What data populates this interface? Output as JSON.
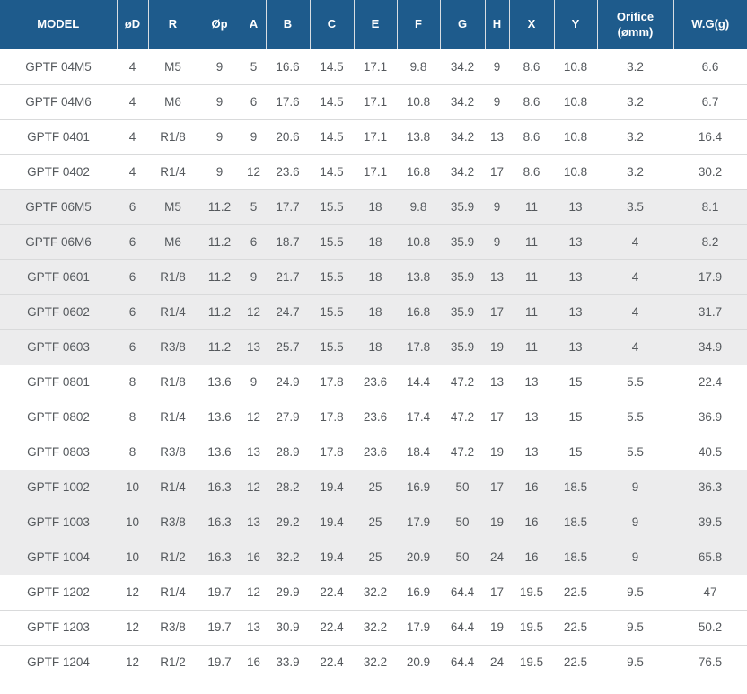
{
  "colors": {
    "header_bg": "#1e5b8c",
    "header_text": "#ffffff",
    "row_alt_bg": "#ececed",
    "row_bg": "#ffffff",
    "text": "#54585c",
    "divider": "#d9dadb"
  },
  "table": {
    "columns": [
      {
        "key": "model",
        "label": "MODEL"
      },
      {
        "key": "od",
        "label": "øD"
      },
      {
        "key": "r",
        "label": "R"
      },
      {
        "key": "op",
        "label": "Øp"
      },
      {
        "key": "a",
        "label": "A"
      },
      {
        "key": "b",
        "label": "B"
      },
      {
        "key": "c",
        "label": "C"
      },
      {
        "key": "e",
        "label": "E"
      },
      {
        "key": "f",
        "label": "F"
      },
      {
        "key": "g",
        "label": "G"
      },
      {
        "key": "h",
        "label": "H"
      },
      {
        "key": "x",
        "label": "X"
      },
      {
        "key": "y",
        "label": "Y"
      },
      {
        "key": "orifice",
        "label": "Orifice (ømm)"
      },
      {
        "key": "wg",
        "label": "W.G(g)"
      }
    ],
    "rows": [
      {
        "shaded": false,
        "cells": [
          "GPTF 04M5",
          "4",
          "M5",
          "9",
          "5",
          "16.6",
          "14.5",
          "17.1",
          "9.8",
          "34.2",
          "9",
          "8.6",
          "10.8",
          "3.2",
          "6.6"
        ]
      },
      {
        "shaded": false,
        "cells": [
          "GPTF 04M6",
          "4",
          "M6",
          "9",
          "6",
          "17.6",
          "14.5",
          "17.1",
          "10.8",
          "34.2",
          "9",
          "8.6",
          "10.8",
          "3.2",
          "6.7"
        ]
      },
      {
        "shaded": false,
        "cells": [
          "GPTF 0401",
          "4",
          "R1/8",
          "9",
          "9",
          "20.6",
          "14.5",
          "17.1",
          "13.8",
          "34.2",
          "13",
          "8.6",
          "10.8",
          "3.2",
          "16.4"
        ]
      },
      {
        "shaded": false,
        "cells": [
          "GPTF 0402",
          "4",
          "R1/4",
          "9",
          "12",
          "23.6",
          "14.5",
          "17.1",
          "16.8",
          "34.2",
          "17",
          "8.6",
          "10.8",
          "3.2",
          "30.2"
        ]
      },
      {
        "shaded": true,
        "cells": [
          "GPTF 06M5",
          "6",
          "M5",
          "11.2",
          "5",
          "17.7",
          "15.5",
          "18",
          "9.8",
          "35.9",
          "9",
          "11",
          "13",
          "3.5",
          "8.1"
        ]
      },
      {
        "shaded": true,
        "cells": [
          "GPTF 06M6",
          "6",
          "M6",
          "11.2",
          "6",
          "18.7",
          "15.5",
          "18",
          "10.8",
          "35.9",
          "9",
          "11",
          "13",
          "4",
          "8.2"
        ]
      },
      {
        "shaded": true,
        "cells": [
          "GPTF 0601",
          "6",
          "R1/8",
          "11.2",
          "9",
          "21.7",
          "15.5",
          "18",
          "13.8",
          "35.9",
          "13",
          "11",
          "13",
          "4",
          "17.9"
        ]
      },
      {
        "shaded": true,
        "cells": [
          "GPTF 0602",
          "6",
          "R1/4",
          "11.2",
          "12",
          "24.7",
          "15.5",
          "18",
          "16.8",
          "35.9",
          "17",
          "11",
          "13",
          "4",
          "31.7"
        ]
      },
      {
        "shaded": true,
        "cells": [
          "GPTF 0603",
          "6",
          "R3/8",
          "11.2",
          "13",
          "25.7",
          "15.5",
          "18",
          "17.8",
          "35.9",
          "19",
          "11",
          "13",
          "4",
          "34.9"
        ]
      },
      {
        "shaded": false,
        "cells": [
          "GPTF 0801",
          "8",
          "R1/8",
          "13.6",
          "9",
          "24.9",
          "17.8",
          "23.6",
          "14.4",
          "47.2",
          "13",
          "13",
          "15",
          "5.5",
          "22.4"
        ]
      },
      {
        "shaded": false,
        "cells": [
          "GPTF 0802",
          "8",
          "R1/4",
          "13.6",
          "12",
          "27.9",
          "17.8",
          "23.6",
          "17.4",
          "47.2",
          "17",
          "13",
          "15",
          "5.5",
          "36.9"
        ]
      },
      {
        "shaded": false,
        "cells": [
          "GPTF 0803",
          "8",
          "R3/8",
          "13.6",
          "13",
          "28.9",
          "17.8",
          "23.6",
          "18.4",
          "47.2",
          "19",
          "13",
          "15",
          "5.5",
          "40.5"
        ]
      },
      {
        "shaded": true,
        "cells": [
          "GPTF 1002",
          "10",
          "R1/4",
          "16.3",
          "12",
          "28.2",
          "19.4",
          "25",
          "16.9",
          "50",
          "17",
          "16",
          "18.5",
          "9",
          "36.3"
        ]
      },
      {
        "shaded": true,
        "cells": [
          "GPTF 1003",
          "10",
          "R3/8",
          "16.3",
          "13",
          "29.2",
          "19.4",
          "25",
          "17.9",
          "50",
          "19",
          "16",
          "18.5",
          "9",
          "39.5"
        ]
      },
      {
        "shaded": true,
        "cells": [
          "GPTF 1004",
          "10",
          "R1/2",
          "16.3",
          "16",
          "32.2",
          "19.4",
          "25",
          "20.9",
          "50",
          "24",
          "16",
          "18.5",
          "9",
          "65.8"
        ]
      },
      {
        "shaded": false,
        "cells": [
          "GPTF 1202",
          "12",
          "R1/4",
          "19.7",
          "12",
          "29.9",
          "22.4",
          "32.2",
          "16.9",
          "64.4",
          "17",
          "19.5",
          "22.5",
          "9.5",
          "47"
        ]
      },
      {
        "shaded": false,
        "cells": [
          "GPTF 1203",
          "12",
          "R3/8",
          "19.7",
          "13",
          "30.9",
          "22.4",
          "32.2",
          "17.9",
          "64.4",
          "19",
          "19.5",
          "22.5",
          "9.5",
          "50.2"
        ]
      },
      {
        "shaded": false,
        "cells": [
          "GPTF 1204",
          "12",
          "R1/2",
          "19.7",
          "16",
          "33.9",
          "22.4",
          "32.2",
          "20.9",
          "64.4",
          "24",
          "19.5",
          "22.5",
          "9.5",
          "76.5"
        ]
      }
    ]
  }
}
